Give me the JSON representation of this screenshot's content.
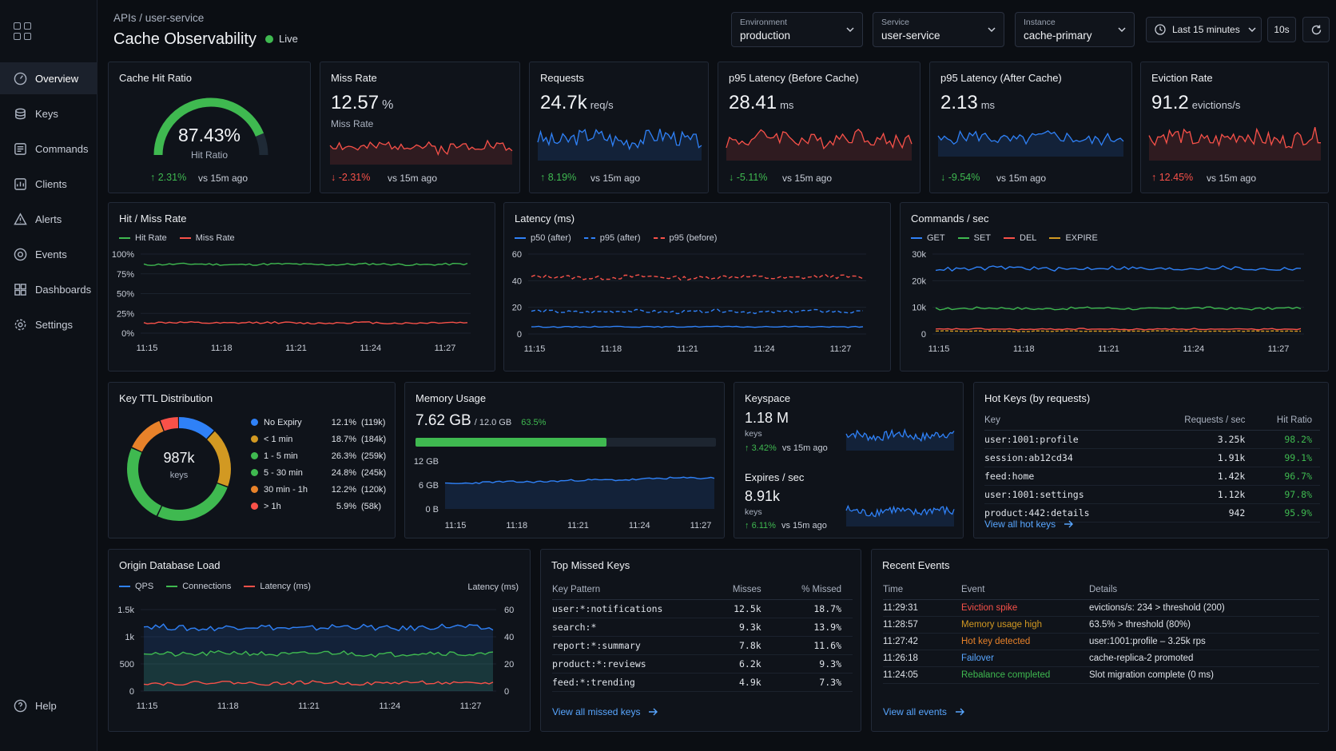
{
  "breadcrumb": "APIs / user-service",
  "title": "Cache Observability",
  "live": "Live",
  "selects": [
    {
      "label": "Environment",
      "value": "production"
    },
    {
      "label": "Service",
      "value": "user-service"
    },
    {
      "label": "Instance",
      "value": "cache-primary"
    }
  ],
  "time_range": "Last 15 minutes",
  "refresh_interval": "10s",
  "nav": [
    "Overview",
    "Keys",
    "Commands",
    "Clients",
    "Alerts",
    "Events",
    "Dashboards",
    "Settings"
  ],
  "help": "Help",
  "stats": {
    "hit_ratio": {
      "title": "Cache Hit Ratio",
      "value": "87.43%",
      "label": "Hit Ratio",
      "delta": "2.31%",
      "vs": "vs 15m ago",
      "fraction": 0.8743
    },
    "miss_rate": {
      "title": "Miss Rate",
      "value": "12.57",
      "unit": "%",
      "label": "Miss Rate",
      "delta": "-2.31%",
      "vs": "vs 15m ago"
    },
    "requests": {
      "title": "Requests",
      "value": "24.7k",
      "unit": "req/s",
      "delta": "8.19%",
      "vs": "vs 15m ago"
    },
    "p95_before": {
      "title": "p95 Latency (Before Cache)",
      "value": "28.41",
      "unit": "ms",
      "delta": "-5.11%",
      "vs": "vs 15m ago"
    },
    "p95_after": {
      "title": "p95 Latency (After Cache)",
      "value": "2.13",
      "unit": "ms",
      "delta": "-9.54%",
      "vs": "vs 15m ago"
    },
    "eviction": {
      "title": "Eviction Rate",
      "value": "91.2",
      "unit": "evictions/s",
      "delta": "12.45%",
      "vs": "vs 15m ago"
    }
  },
  "time_ticks": [
    "11:15",
    "11:18",
    "11:21",
    "11:24",
    "11:27"
  ],
  "hitmiss": {
    "title": "Hit / Miss Rate",
    "legend": [
      "Hit Rate",
      "Miss Rate"
    ],
    "yticks": [
      "100%",
      "75%",
      "50%",
      "25%",
      "0%"
    ]
  },
  "latency": {
    "title": "Latency (ms)",
    "legend": [
      "p50 (after)",
      "p95 (after)",
      "p95 (before)"
    ],
    "yticks": [
      "60",
      "40",
      "20",
      "0"
    ]
  },
  "commands": {
    "title": "Commands / sec",
    "legend": [
      "GET",
      "SET",
      "DEL",
      "EXPIRE"
    ],
    "yticks": [
      "30k",
      "20k",
      "10k",
      "0"
    ]
  },
  "ttl": {
    "title": "Key TTL Distribution",
    "center_value": "987k",
    "center_label": "keys",
    "items": [
      {
        "label": "No Expiry",
        "pct": "12.1%",
        "count": "(119k)",
        "color": "#2f81f7",
        "value": 12.1
      },
      {
        "label": "< 1 min",
        "pct": "18.7%",
        "count": "(184k)",
        "color": "#d29922",
        "value": 18.7
      },
      {
        "label": "1 - 5 min",
        "pct": "26.3%",
        "count": "(259k)",
        "color": "#3fb950",
        "value": 26.3
      },
      {
        "label": "5 - 30 min",
        "pct": "24.8%",
        "count": "(245k)",
        "color": "#3fb950",
        "value": 24.8
      },
      {
        "label": "30 min - 1h",
        "pct": "12.2%",
        "count": "(120k)",
        "color": "#e8822a",
        "value": 12.2
      },
      {
        "label": "> 1h",
        "pct": "5.9%",
        "count": "(58k)",
        "color": "#f85149",
        "value": 5.9
      }
    ]
  },
  "memory": {
    "title": "Memory Usage",
    "value": "7.62 GB",
    "total": "/ 12.0 GB",
    "pct": "63.5%",
    "fraction": 0.635,
    "yticks": [
      "12 GB",
      "6 GB",
      "0 B"
    ]
  },
  "keyspace": {
    "title": "Keyspace",
    "value": "1.18 M",
    "unit": "keys",
    "delta": "3.42%",
    "vs": "vs 15m ago",
    "exp_title": "Expires / sec",
    "exp_value": "8.91k",
    "exp_unit": "keys",
    "exp_delta": "6.11%",
    "exp_vs": "vs 15m ago"
  },
  "hotkeys": {
    "title": "Hot Keys (by requests)",
    "cols": [
      "Key",
      "Requests / sec",
      "Hit Ratio"
    ],
    "rows": [
      [
        "user:1001:profile",
        "3.25k",
        "98.2%"
      ],
      [
        "session:ab12cd34",
        "1.91k",
        "99.1%"
      ],
      [
        "feed:home",
        "1.42k",
        "96.7%"
      ],
      [
        "user:1001:settings",
        "1.12k",
        "97.8%"
      ],
      [
        "product:442:details",
        "942",
        "95.9%"
      ]
    ],
    "link": "View all hot keys"
  },
  "origin": {
    "title": "Origin Database Load",
    "legend": [
      "QPS",
      "Connections",
      "Latency (ms)"
    ],
    "right_label": "Latency (ms)",
    "yticks": [
      "1.5k",
      "1k",
      "500",
      "0"
    ],
    "yticks_right": [
      "60",
      "40",
      "20",
      "0"
    ]
  },
  "missed": {
    "title": "Top Missed Keys",
    "cols": [
      "Key Pattern",
      "Misses",
      "% Missed"
    ],
    "rows": [
      [
        "user:*:notifications",
        "12.5k",
        "18.7%"
      ],
      [
        "search:*",
        "9.3k",
        "13.9%"
      ],
      [
        "report:*:summary",
        "7.8k",
        "11.6%"
      ],
      [
        "product:*:reviews",
        "6.2k",
        "9.3%"
      ],
      [
        "feed:*:trending",
        "4.9k",
        "7.3%"
      ]
    ],
    "link": "View all missed keys"
  },
  "events": {
    "title": "Recent Events",
    "cols": [
      "Time",
      "Event",
      "Details"
    ],
    "rows": [
      {
        "time": "11:29:31",
        "event": "Eviction spike",
        "details": "evictions/s: 234 > threshold (200)",
        "color": "#f85149"
      },
      {
        "time": "11:28:57",
        "event": "Memory usage high",
        "details": "63.5% > threshold (80%)",
        "color": "#d29922"
      },
      {
        "time": "11:27:42",
        "event": "Hot key detected",
        "details": "user:1001:profile – 3.25k rps",
        "color": "#e8822a"
      },
      {
        "time": "11:26:18",
        "event": "Failover",
        "details": "cache-replica-2 promoted",
        "color": "#58a6ff"
      },
      {
        "time": "11:24:05",
        "event": "Rebalance completed",
        "details": "Slot migration complete (0 ms)",
        "color": "#3fb950"
      }
    ],
    "link": "View all events"
  },
  "colors": {
    "blue": "#2f81f7",
    "green": "#3fb950",
    "red": "#f85149",
    "orange": "#e8822a",
    "yellow": "#d29922"
  }
}
